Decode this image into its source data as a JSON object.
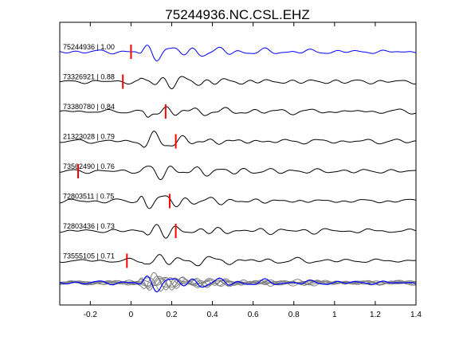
{
  "chart_data": {
    "type": "line",
    "title": "75244936.NC.CSL.EHZ",
    "xlabel": "",
    "ylabel": "",
    "xlim": [
      -0.35,
      1.4
    ],
    "xticks": [
      -0.2,
      0,
      0.2,
      0.4,
      0.6,
      0.8,
      1,
      1.2,
      1.4
    ],
    "xtick_labels": [
      "-0.2",
      "0",
      "0.2",
      "0.4",
      "0.6",
      "0.8",
      "1",
      "1.2",
      "1.4"
    ],
    "grid": false,
    "legend": "none",
    "colors": {
      "master": "#0000ff",
      "trace": "#000000",
      "pick": "#ff0000",
      "stack": "#808080"
    },
    "traces": [
      {
        "label": "75244936 | 1.00",
        "pick_time": 0.0,
        "color": "master",
        "seed": 1
      },
      {
        "label": "73326921 | 0.88",
        "pick_time": -0.04,
        "color": "trace",
        "seed": 2
      },
      {
        "label": "73380780 | 0.84",
        "pick_time": 0.17,
        "color": "trace",
        "seed": 3
      },
      {
        "label": "21323028 | 0.79",
        "pick_time": 0.22,
        "color": "trace",
        "seed": 4
      },
      {
        "label": "73562490 | 0.76",
        "pick_time": -0.26,
        "color": "trace",
        "seed": 5
      },
      {
        "label": "72803511 | 0.75",
        "pick_time": 0.19,
        "color": "trace",
        "seed": 6
      },
      {
        "label": "72803436 | 0.73",
        "pick_time": 0.22,
        "color": "trace",
        "seed": 7
      },
      {
        "label": "73555105 | 0.71",
        "pick_time": -0.02,
        "color": "trace",
        "seed": 8
      }
    ],
    "stack": {
      "traces": 8,
      "master_overlay": true
    }
  }
}
